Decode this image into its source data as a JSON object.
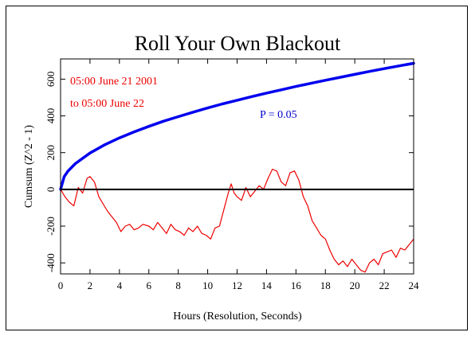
{
  "chart_data": {
    "type": "line",
    "title": "Roll Your Own Blackout",
    "xlabel": "Hours (Resolution, Seconds)",
    "ylabel": "Cumsum (Z^2 - 1)",
    "xlim": [
      0,
      24
    ],
    "ylim": [
      -460,
      710
    ],
    "x_ticks": [
      0,
      2,
      4,
      6,
      8,
      10,
      12,
      14,
      16,
      18,
      20,
      22,
      24
    ],
    "x_tick_labels": [
      "0",
      "2",
      "4",
      "6",
      "8",
      "10",
      "12",
      "14",
      "16",
      "18",
      "20",
      "22",
      "24"
    ],
    "y_ticks": [
      -400,
      -200,
      0,
      200,
      400,
      600
    ],
    "y_tick_labels": [
      "-400",
      "-200",
      "0",
      "200",
      "400",
      "600"
    ],
    "grid": false,
    "annotations": [
      {
        "text": "05:00 June 21 2001",
        "color": "#ee0000"
      },
      {
        "text": "to 05:00 June 22",
        "color": "#ee0000"
      },
      {
        "text": "P = 0.05",
        "color": "#0000cc"
      }
    ],
    "series": [
      {
        "role": "cumulative deviation",
        "color": "#ee0000",
        "x": [
          0,
          0.3,
          0.6,
          0.9,
          1.2,
          1.5,
          1.8,
          2.0,
          2.3,
          2.6,
          2.9,
          3.2,
          3.5,
          3.8,
          4.1,
          4.4,
          4.7,
          5.0,
          5.3,
          5.6,
          6.0,
          6.3,
          6.6,
          6.9,
          7.2,
          7.5,
          7.8,
          8.1,
          8.4,
          8.7,
          9.0,
          9.3,
          9.6,
          9.9,
          10.2,
          10.5,
          10.8,
          11.1,
          11.4,
          11.6,
          11.8,
          12.0,
          12.3,
          12.6,
          12.9,
          13.2,
          13.5,
          13.8,
          14.1,
          14.4,
          14.7,
          15.0,
          15.3,
          15.6,
          15.9,
          16.2,
          16.5,
          16.8,
          17.1,
          17.4,
          17.7,
          18.0,
          18.3,
          18.6,
          18.9,
          19.2,
          19.5,
          19.8,
          20.1,
          20.4,
          20.7,
          21.0,
          21.3,
          21.6,
          21.9,
          22.2,
          22.5,
          22.8,
          23.1,
          23.4,
          23.7,
          24.0
        ],
        "y": [
          0,
          -40,
          -70,
          -90,
          10,
          -20,
          60,
          70,
          40,
          -40,
          -80,
          -120,
          -150,
          -180,
          -230,
          -200,
          -190,
          -220,
          -210,
          -190,
          -200,
          -220,
          -180,
          -210,
          -240,
          -190,
          -220,
          -230,
          -250,
          -210,
          -230,
          -200,
          -240,
          -250,
          -270,
          -210,
          -200,
          -110,
          -20,
          30,
          -20,
          -40,
          -60,
          10,
          -40,
          -10,
          20,
          0,
          60,
          110,
          100,
          40,
          20,
          90,
          100,
          50,
          -40,
          -90,
          -170,
          -210,
          -250,
          -270,
          -330,
          -380,
          -410,
          -390,
          -420,
          -380,
          -410,
          -440,
          -450,
          -400,
          -380,
          -410,
          -350,
          -340,
          -330,
          -370,
          -320,
          -330,
          -300,
          -270
        ]
      },
      {
        "role": "P = 0.05 envelope",
        "color": "#0000ee",
        "x": [
          0,
          0.25,
          0.5,
          1,
          2,
          3,
          4,
          5,
          6,
          7,
          8,
          9,
          10,
          11,
          12,
          13,
          14,
          15,
          16,
          17,
          18,
          19,
          20,
          21,
          22,
          23,
          24
        ],
        "y": [
          0,
          70,
          99,
          140,
          198,
          243,
          280,
          313,
          343,
          371,
          396,
          420,
          443,
          465,
          485,
          505,
          524,
          542,
          560,
          577,
          594,
          610,
          626,
          642,
          657,
          672,
          686
        ]
      }
    ]
  }
}
